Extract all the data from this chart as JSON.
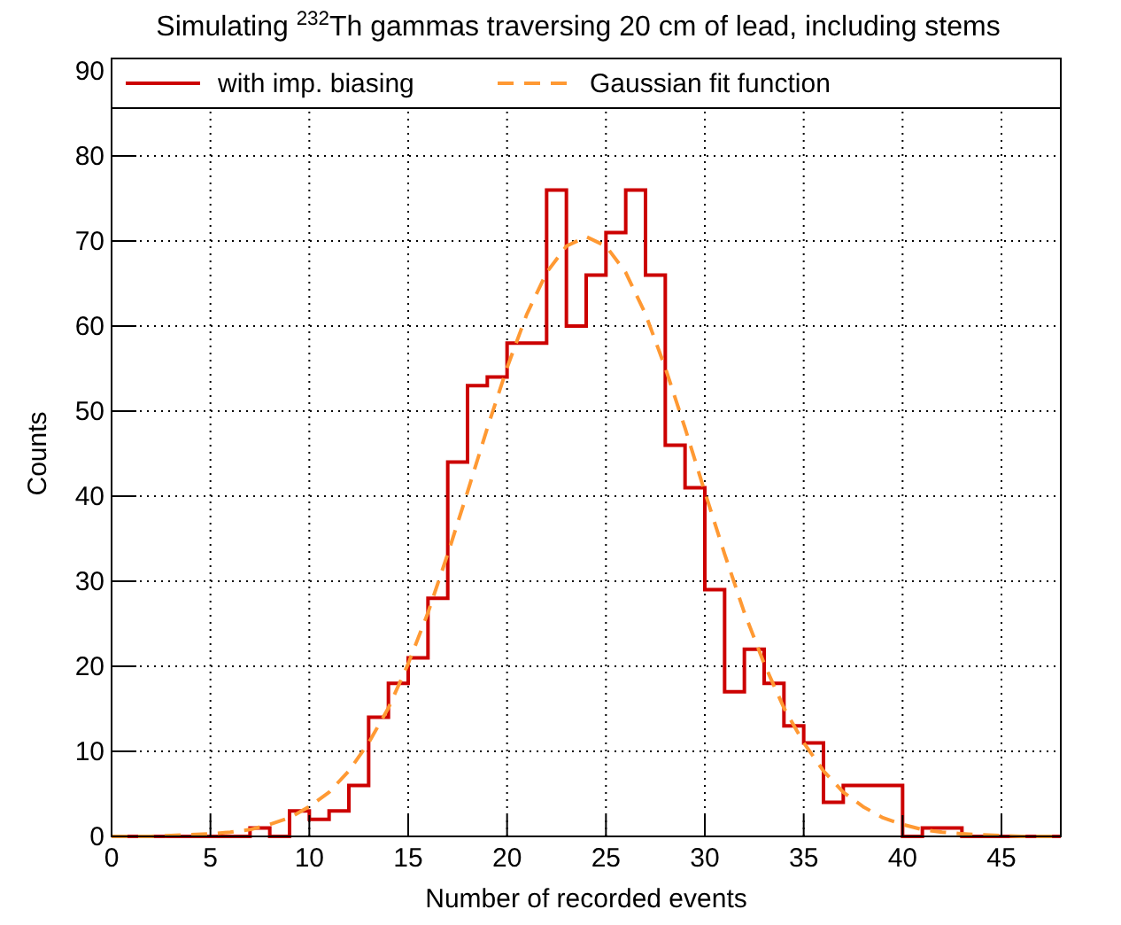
{
  "chart_data": {
    "type": "histogram",
    "title": "Simulating  $^{232}$Th gammas traversing 20 cm of lead, including stems",
    "xlabel": "Number of recorded events",
    "ylabel": "Counts",
    "bins": [
      0,
      1,
      2,
      3,
      4,
      5,
      6,
      7,
      8,
      9,
      10,
      11,
      12,
      13,
      14,
      15,
      16,
      17,
      18,
      19,
      20,
      21,
      22,
      23,
      24,
      25,
      26,
      27,
      28,
      29,
      30,
      31,
      32,
      33,
      34,
      35,
      36,
      37,
      38,
      39,
      40,
      41,
      42,
      43,
      44,
      45,
      46,
      47,
      48
    ],
    "series": [
      {
        "name": "with imp. biasing",
        "color": "#cc0000",
        "values": [
          0,
          0,
          0,
          0,
          0,
          0,
          0,
          1,
          0,
          3,
          2,
          3,
          6,
          14,
          18,
          21,
          28,
          44,
          53,
          54,
          58,
          58,
          76,
          60,
          66,
          71,
          76,
          66,
          46,
          41,
          29,
          17,
          22,
          18,
          13,
          11,
          4,
          6,
          6,
          6,
          0,
          1,
          1,
          0,
          0,
          0,
          0,
          0
        ]
      },
      {
        "type": "line",
        "name": "Gaussian fit function",
        "color": "#ff9933",
        "line_style": "dashed",
        "x": [
          0,
          1,
          2,
          3,
          4,
          5,
          6,
          7,
          8,
          9,
          10,
          11,
          12,
          13,
          14,
          15,
          16,
          17,
          18,
          19,
          20,
          21,
          22,
          23,
          24,
          25,
          26,
          27,
          28,
          29,
          30,
          31,
          32,
          33,
          34,
          35,
          36,
          37,
          38,
          39,
          40,
          41,
          42,
          43,
          44,
          45,
          46,
          47,
          48
        ],
        "values": [
          0,
          0,
          0,
          0.1,
          0.2,
          0.3,
          0.5,
          0.8,
          1.4,
          2.2,
          3.5,
          5.2,
          7.7,
          11,
          15.1,
          20.3,
          26.3,
          33.2,
          40.5,
          48,
          55.1,
          61.4,
          66.3,
          69.4,
          70.5,
          69.4,
          66.3,
          61.4,
          55.1,
          48,
          40.5,
          33.2,
          26.3,
          20.3,
          15.1,
          11,
          7.7,
          5.2,
          3.5,
          2.2,
          1.4,
          0.8,
          0.5,
          0.3,
          0.2,
          0.1,
          0,
          0,
          0
        ]
      }
    ],
    "xlim": [
      0,
      48
    ],
    "xticks": [
      0,
      5,
      10,
      15,
      20,
      25,
      30,
      35,
      40,
      45
    ],
    "ylim": [
      0,
      90
    ],
    "yticks": [
      0,
      10,
      20,
      30,
      40,
      50,
      60,
      70,
      80,
      90
    ],
    "grid": true,
    "legend": "top"
  }
}
